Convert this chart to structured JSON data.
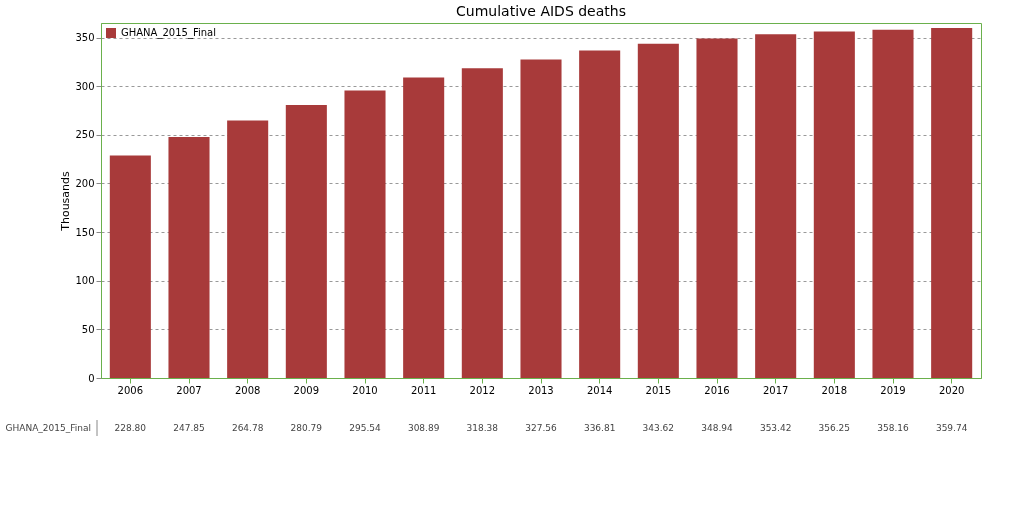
{
  "chart_data": {
    "type": "bar",
    "title": "Cumulative AIDS deaths",
    "ylabel": "Thousands",
    "categories": [
      "2006",
      "2007",
      "2008",
      "2009",
      "2010",
      "2011",
      "2012",
      "2013",
      "2014",
      "2015",
      "2016",
      "2017",
      "2018",
      "2019",
      "2020"
    ],
    "series": [
      {
        "name": "GHANA_2015_Final",
        "color": "#a83a3a",
        "values": [
          228.8,
          247.85,
          264.78,
          280.79,
          295.54,
          308.89,
          318.38,
          327.56,
          336.81,
          343.62,
          348.94,
          353.42,
          356.25,
          358.16,
          359.74
        ],
        "value_labels": [
          "228.80",
          "247.85",
          "264.78",
          "280.79",
          "295.54",
          "308.89",
          "318.38",
          "327.56",
          "336.81",
          "343.62",
          "348.94",
          "353.42",
          "356.25",
          "358.16",
          "359.74"
        ]
      }
    ],
    "ylim": [
      0,
      365
    ],
    "yticks": [
      0,
      50,
      100,
      150,
      200,
      250,
      300,
      350
    ],
    "grid": "y",
    "legend": "top left"
  }
}
